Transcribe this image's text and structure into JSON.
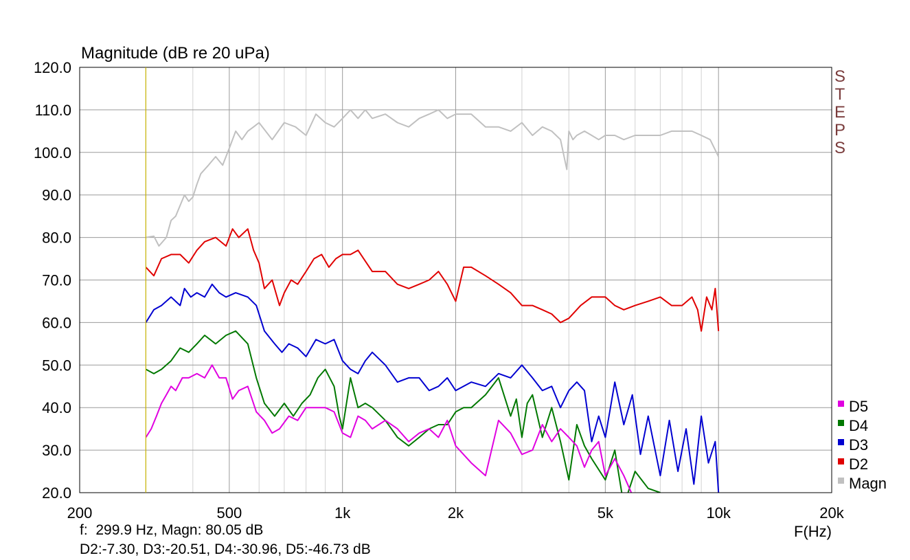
{
  "chart_data": {
    "type": "line",
    "title": "Magnitude (dB re 20 uPa)",
    "xlabel": "F(Hz)",
    "x_scale": "log",
    "xlim": [
      200,
      20000
    ],
    "ylim": [
      20,
      120
    ],
    "grid": true,
    "x_tick_values": [
      200,
      500,
      1000,
      2000,
      5000,
      10000,
      20000
    ],
    "x_tick_labels": [
      "200",
      "500",
      "1k",
      "2k",
      "5k",
      "10k",
      "20k"
    ],
    "y_tick_values": [
      20,
      30,
      40,
      50,
      60,
      70,
      80,
      90,
      100,
      110,
      120
    ],
    "y_tick_labels": [
      "20.0",
      "30.0",
      "40.0",
      "50.0",
      "60.0",
      "70.0",
      "80.0",
      "90.0",
      "100.0",
      "110.0",
      "120.0"
    ],
    "cursor_x": 299.9,
    "cursor_color": "#c8b400",
    "side_label_letters": [
      "S",
      "T",
      "E",
      "P",
      "S"
    ],
    "side_label_color": "#7a3c3c",
    "legend_position": "bottom-right",
    "legend": [
      {
        "name": "D5",
        "color": "#e000e0"
      },
      {
        "name": "D4",
        "color": "#007800"
      },
      {
        "name": "D3",
        "color": "#0000d0"
      },
      {
        "name": "D2",
        "color": "#e00000"
      },
      {
        "name": "Magn",
        "color": "#c0c0c0"
      }
    ],
    "series": [
      {
        "name": "Magn",
        "color": "#c0c0c0",
        "x": [
          300,
          315,
          325,
          340,
          350,
          360,
          380,
          390,
          400,
          410,
          420,
          440,
          460,
          480,
          500,
          520,
          540,
          560,
          580,
          600,
          650,
          700,
          750,
          800,
          850,
          900,
          950,
          1000,
          1050,
          1100,
          1150,
          1200,
          1300,
          1400,
          1500,
          1600,
          1700,
          1800,
          1900,
          2000,
          2200,
          2400,
          2600,
          2800,
          3000,
          3200,
          3400,
          3600,
          3800,
          3950,
          4000,
          4100,
          4200,
          4400,
          4600,
          4800,
          5000,
          5300,
          5600,
          6000,
          6500,
          7000,
          7500,
          8000,
          8500,
          9000,
          9500,
          10000
        ],
        "values": [
          80,
          80.3,
          78,
          80,
          84,
          85,
          90,
          88.5,
          89.5,
          92.5,
          95,
          97,
          99,
          97,
          101,
          105,
          103,
          105,
          106,
          107,
          103,
          107,
          106,
          104,
          109,
          107,
          106,
          108,
          110,
          108,
          110,
          108,
          109,
          107,
          106,
          108,
          109,
          110,
          108,
          109,
          109,
          106,
          106,
          105,
          107,
          104,
          106,
          105,
          103,
          96,
          105,
          103,
          104,
          105,
          104,
          103,
          104,
          104,
          103,
          104,
          104,
          104,
          105,
          105,
          105,
          104,
          103,
          99
        ]
      },
      {
        "name": "D2",
        "color": "#e00000",
        "x": [
          300,
          315,
          330,
          350,
          370,
          390,
          410,
          430,
          460,
          490,
          510,
          530,
          560,
          580,
          600,
          620,
          650,
          680,
          700,
          730,
          760,
          800,
          840,
          880,
          920,
          960,
          1000,
          1050,
          1100,
          1200,
          1300,
          1400,
          1500,
          1600,
          1700,
          1800,
          1900,
          2000,
          2100,
          2200,
          2400,
          2600,
          2800,
          3000,
          3200,
          3400,
          3600,
          3800,
          4000,
          4300,
          4600,
          5000,
          5300,
          5600,
          6000,
          6500,
          7000,
          7500,
          8000,
          8500,
          8800,
          9000,
          9300,
          9600,
          9800,
          10000
        ],
        "values": [
          73,
          71,
          75,
          76,
          76,
          74,
          77,
          79,
          80,
          78,
          82,
          80,
          82,
          77,
          74,
          68,
          70,
          64,
          67,
          70,
          69,
          72,
          75,
          76,
          73,
          75,
          76,
          76,
          77,
          72,
          72,
          69,
          68,
          69,
          70,
          72,
          69,
          65,
          73,
          73,
          71,
          69,
          67,
          64,
          64,
          63,
          62,
          60,
          61,
          64,
          66,
          66,
          64,
          63,
          64,
          65,
          66,
          64,
          64,
          66,
          63,
          58,
          66,
          63,
          68,
          58
        ]
      },
      {
        "name": "D3",
        "color": "#0000d0",
        "x": [
          300,
          315,
          330,
          350,
          370,
          380,
          395,
          410,
          430,
          450,
          470,
          490,
          520,
          560,
          590,
          620,
          660,
          690,
          720,
          760,
          800,
          850,
          900,
          950,
          1000,
          1050,
          1100,
          1150,
          1200,
          1300,
          1400,
          1500,
          1600,
          1700,
          1800,
          1900,
          2000,
          2200,
          2400,
          2600,
          2800,
          3000,
          3200,
          3400,
          3600,
          3800,
          4000,
          4200,
          4400,
          4600,
          4800,
          5000,
          5300,
          5600,
          5900,
          6200,
          6500,
          7000,
          7400,
          7800,
          8200,
          8600,
          9000,
          9400,
          9800,
          10000
        ],
        "values": [
          60,
          63,
          64,
          66,
          64,
          68,
          66,
          67,
          66,
          69,
          67,
          66,
          67,
          66,
          64,
          58,
          55,
          53,
          55,
          54,
          52,
          56,
          55,
          56,
          51,
          49,
          48,
          51,
          53,
          50,
          46,
          47,
          47,
          44,
          45,
          47,
          44,
          46,
          45,
          48,
          47,
          50,
          47,
          44,
          45,
          40,
          44,
          46,
          44,
          32,
          38,
          33,
          46,
          36,
          43,
          29,
          38,
          24,
          37,
          25,
          35,
          22,
          38,
          27,
          32,
          20
        ]
      },
      {
        "name": "D4",
        "color": "#007800",
        "x": [
          300,
          315,
          330,
          350,
          370,
          390,
          410,
          430,
          460,
          490,
          520,
          560,
          590,
          620,
          660,
          700,
          740,
          780,
          820,
          860,
          900,
          950,
          980,
          1000,
          1050,
          1100,
          1150,
          1200,
          1300,
          1400,
          1500,
          1600,
          1700,
          1800,
          1900,
          2000,
          2100,
          2200,
          2400,
          2600,
          2800,
          2900,
          3000,
          3100,
          3200,
          3400,
          3600,
          3800,
          4000,
          4200,
          4400,
          4600,
          5000,
          5300,
          5600,
          6000,
          6500,
          7000
        ],
        "values": [
          49,
          48,
          49,
          51,
          54,
          53,
          55,
          57,
          55,
          57,
          58,
          55,
          47,
          41,
          38,
          41,
          38,
          41,
          43,
          47,
          49,
          45,
          38,
          35,
          47,
          40,
          41,
          40,
          37,
          33,
          31,
          33,
          35,
          36,
          36,
          39,
          40,
          40,
          43,
          47,
          38,
          42,
          33,
          41,
          43,
          33,
          40,
          32,
          23,
          36,
          31,
          28,
          23,
          30,
          17,
          25,
          21,
          20
        ]
      },
      {
        "name": "D5",
        "color": "#e000e0",
        "x": [
          300,
          310,
          320,
          330,
          340,
          350,
          360,
          375,
          390,
          410,
          430,
          450,
          470,
          490,
          510,
          530,
          560,
          590,
          620,
          650,
          680,
          720,
          760,
          800,
          850,
          900,
          950,
          1000,
          1050,
          1100,
          1150,
          1200,
          1300,
          1400,
          1500,
          1600,
          1700,
          1800,
          1900,
          2000,
          2200,
          2400,
          2600,
          2800,
          3000,
          3200,
          3400,
          3600,
          3800,
          4000,
          4200,
          4400,
          4600,
          4800,
          5000,
          5300,
          5600,
          6000
        ],
        "values": [
          33,
          35,
          38,
          41,
          43,
          45,
          44,
          47,
          47,
          48,
          47,
          50,
          47,
          47,
          42,
          44,
          45,
          39,
          37,
          34,
          35,
          38,
          37,
          40,
          40,
          40,
          39,
          34,
          33,
          38,
          37,
          35,
          37,
          35,
          32,
          34,
          35,
          33,
          37,
          31,
          27,
          24,
          37,
          34,
          29,
          30,
          36,
          32,
          35,
          33,
          31,
          26,
          30,
          32,
          24,
          28,
          24,
          18
        ]
      }
    ]
  },
  "readout": {
    "line1": "f:  299.9 Hz, Magn: 80.05 dB",
    "line2": "D2:-7.30, D3:-20.51, D4:-30.96, D5:-46.73 dB"
  }
}
